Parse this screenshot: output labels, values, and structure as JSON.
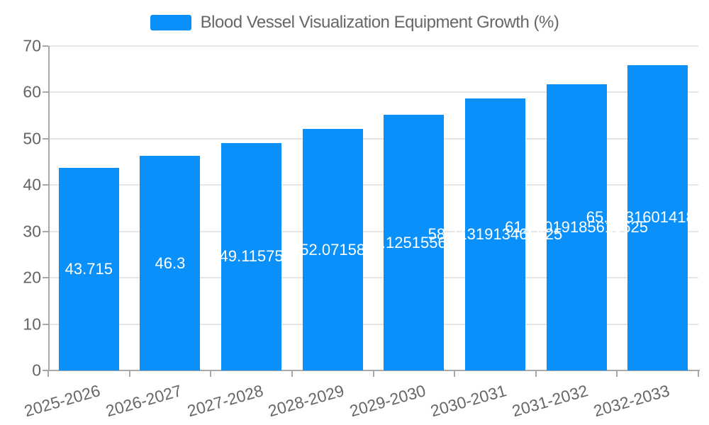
{
  "legend": {
    "label": "Blood Vessel Visualization Equipment Growth (%)",
    "swatch_color": "#0a90fa"
  },
  "chart_data": {
    "type": "bar",
    "title": "Blood Vessel Visualization Equipment Growth (%)",
    "categories": [
      "2025-2026",
      "2026-2027",
      "2027-2028",
      "2028-2029",
      "2029-2030",
      "2030-2031",
      "2031-2032",
      "2032-2033"
    ],
    "values": [
      43.715,
      46.3,
      49.11575,
      52.07158,
      55.125155625,
      58.7131913465625,
      61.74019185615625,
      65.88316014185625
    ],
    "value_labels": [
      "43.715",
      "46.3",
      "49.11575",
      "52.07158",
      "55.125155625",
      "58.7131913465625",
      "61.74019185615625",
      "65.88316014185625"
    ],
    "xlabel": "",
    "ylabel": "",
    "ylim": [
      0,
      70
    ],
    "yticks": [
      "0",
      "10",
      "20",
      "30",
      "40",
      "50",
      "60",
      "70"
    ],
    "grid": true,
    "legend_position": "top-center",
    "bar_color": "#0a90fa",
    "label_color": "#ffffff",
    "axis_color": "#a8a8a8",
    "grid_color": "#e6e6e6",
    "tick_text_color": "#676767"
  }
}
